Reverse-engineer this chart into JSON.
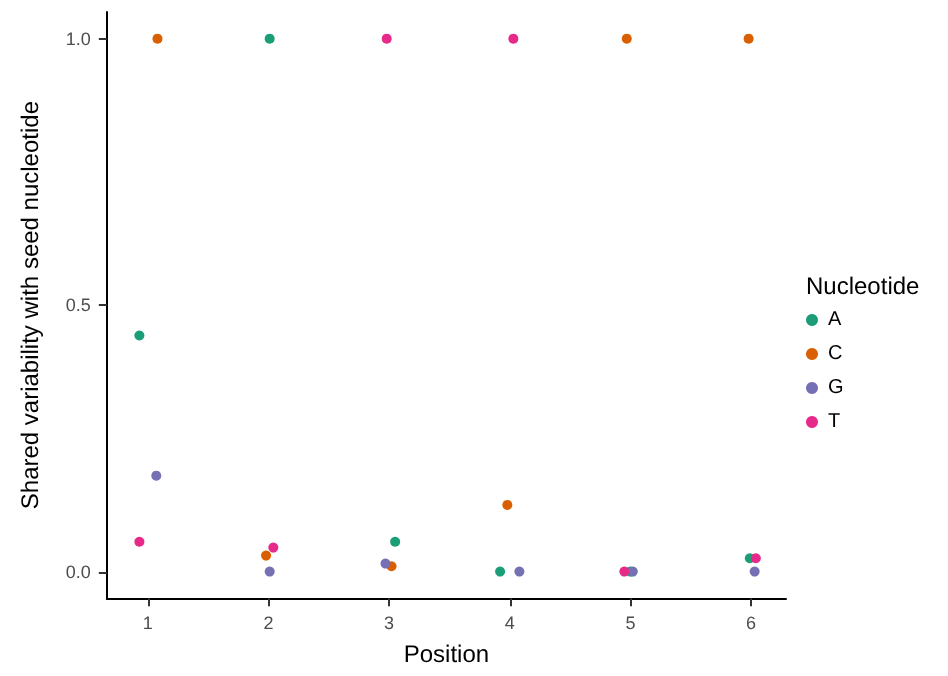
{
  "chart_data": {
    "type": "scatter",
    "xlabel": "Position",
    "ylabel": "Shared variability with seed nucleotide",
    "legend_title": "Nucleotide",
    "series": [
      {
        "name": "A",
        "color": "#1b9e77",
        "x": [
          0.93,
          2.01,
          3.05,
          3.92,
          5.0,
          5.99
        ],
        "values": [
          0.443,
          1.0,
          0.056,
          0.0,
          0.0,
          0.025
        ]
      },
      {
        "name": "C",
        "color": "#d95f02",
        "x": [
          1.08,
          1.98,
          3.02,
          3.98,
          4.97,
          5.98
        ],
        "values": [
          1.0,
          0.03,
          0.01,
          0.125,
          1.0,
          1.0
        ]
      },
      {
        "name": "G",
        "color": "#7570b3",
        "x": [
          1.07,
          2.01,
          2.97,
          4.08,
          5.02,
          6.03
        ],
        "values": [
          0.18,
          0.0,
          0.015,
          0.0,
          0.0,
          0.0
        ]
      },
      {
        "name": "T",
        "color": "#e7298a",
        "x": [
          0.93,
          2.04,
          2.98,
          4.03,
          4.95,
          6.04
        ],
        "values": [
          0.056,
          0.045,
          1.0,
          1.0,
          0.0,
          0.025
        ]
      }
    ],
    "xlim": [
      0.66,
      6.29
    ],
    "xticks": [
      1,
      2,
      3,
      4,
      5,
      6
    ],
    "ylim": [
      -0.05,
      1.05
    ],
    "yticks": [
      {
        "value": 0,
        "label": "0.0"
      },
      {
        "value": 0.5,
        "label": "0.5"
      },
      {
        "value": 1,
        "label": "1.0"
      }
    ],
    "grid": false,
    "legend": "right",
    "marker": "circle"
  }
}
